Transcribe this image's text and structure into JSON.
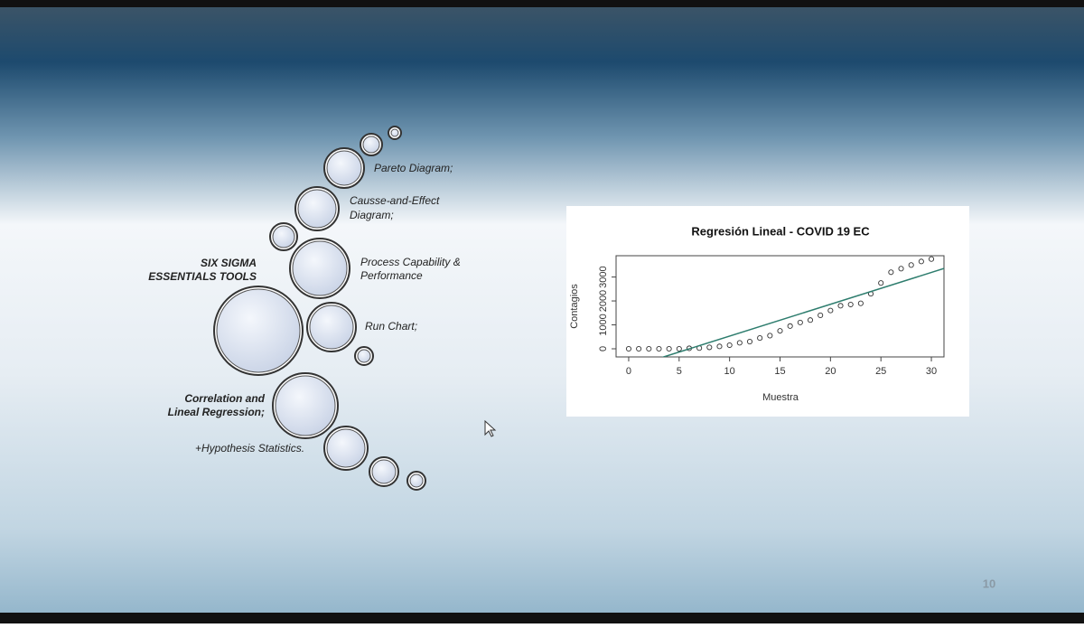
{
  "slide": {
    "heading": [
      "SIX SIGMA",
      "ESSENTIALS TOOLS"
    ],
    "highlight": [
      "Correlation and",
      "Lineal Regression;"
    ],
    "items": [
      [
        "Pareto Diagram;"
      ],
      [
        "Causse-and-Effect",
        "Diagram;"
      ],
      [
        "Process Capability &",
        "Performance"
      ],
      [
        "Run Chart;"
      ],
      [
        "+Hypothesis Statistics."
      ]
    ],
    "page_number": "10"
  },
  "chart_data": {
    "type": "scatter",
    "title": "Regresión Lineal - COVID 19 EC",
    "x_label": "Muestra",
    "y_label": "Contagios",
    "series": [
      {
        "name": "Contagios",
        "color": "#333333",
        "x": [
          0,
          1,
          2,
          3,
          4,
          5,
          6,
          7,
          8,
          9,
          10,
          11,
          12,
          13,
          14,
          15,
          16,
          17,
          18,
          19,
          20,
          21,
          22,
          23,
          24,
          25,
          26,
          27,
          28,
          29,
          30
        ],
        "values": [
          0,
          0,
          0,
          0,
          0,
          0,
          20,
          30,
          60,
          100,
          150,
          250,
          300,
          450,
          550,
          750,
          950,
          1100,
          1200,
          1400,
          1600,
          1800,
          1850,
          1900,
          2300,
          2750,
          3200,
          3350,
          3500,
          3650,
          3750
        ]
      }
    ],
    "fit": {
      "color": "#2e7d6e",
      "intercept": -800,
      "slope": 133
    },
    "xlim": [
      -1.25,
      31.25
    ],
    "ylim": [
      -340,
      3890
    ],
    "xticks": [
      0,
      5,
      10,
      15,
      20,
      25,
      30
    ],
    "yticks": [
      0,
      1000,
      2000,
      3000
    ]
  }
}
